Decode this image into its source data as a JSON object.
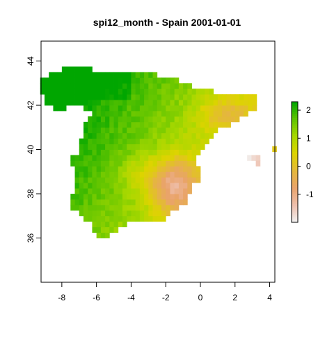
{
  "title": "spi12_month - Spain 2001-01-01",
  "map": {
    "x_range": [
      -9.2,
      4.3
    ],
    "y_range": [
      34.0,
      44.9
    ],
    "x_ticks": [
      -8,
      -6,
      -4,
      -2,
      0,
      2,
      4
    ],
    "y_ticks": [
      36,
      38,
      40,
      42,
      44
    ],
    "cell_size_deg": 0.25,
    "region_value_estimates": [
      {
        "area": "Galicia / Cantabrian coast",
        "spi": 2.0
      },
      {
        "area": "Castilla y León plateau",
        "spi": 1.7
      },
      {
        "area": "Extremadura / Western Andalusia",
        "spi": 1.4
      },
      {
        "area": "Castilla-La Mancha",
        "spi": 0.8
      },
      {
        "area": "Ebro valley / Aragón",
        "spi": 0.2
      },
      {
        "area": "Catalonia interior",
        "spi": -0.4
      },
      {
        "area": "Valencia / Murcia",
        "spi": -1.3
      },
      {
        "area": "Balearic Islands",
        "spi": -1.8
      }
    ]
  },
  "legend": {
    "ticks": [
      -1,
      0,
      1,
      2
    ],
    "min": -2.0,
    "max": 2.3,
    "colors": [
      "#f2f2f2",
      "#eebfac",
      "#e9a36b",
      "#e4b83a",
      "#ddd400",
      "#a8d800",
      "#5ec400",
      "#00a600"
    ]
  }
}
